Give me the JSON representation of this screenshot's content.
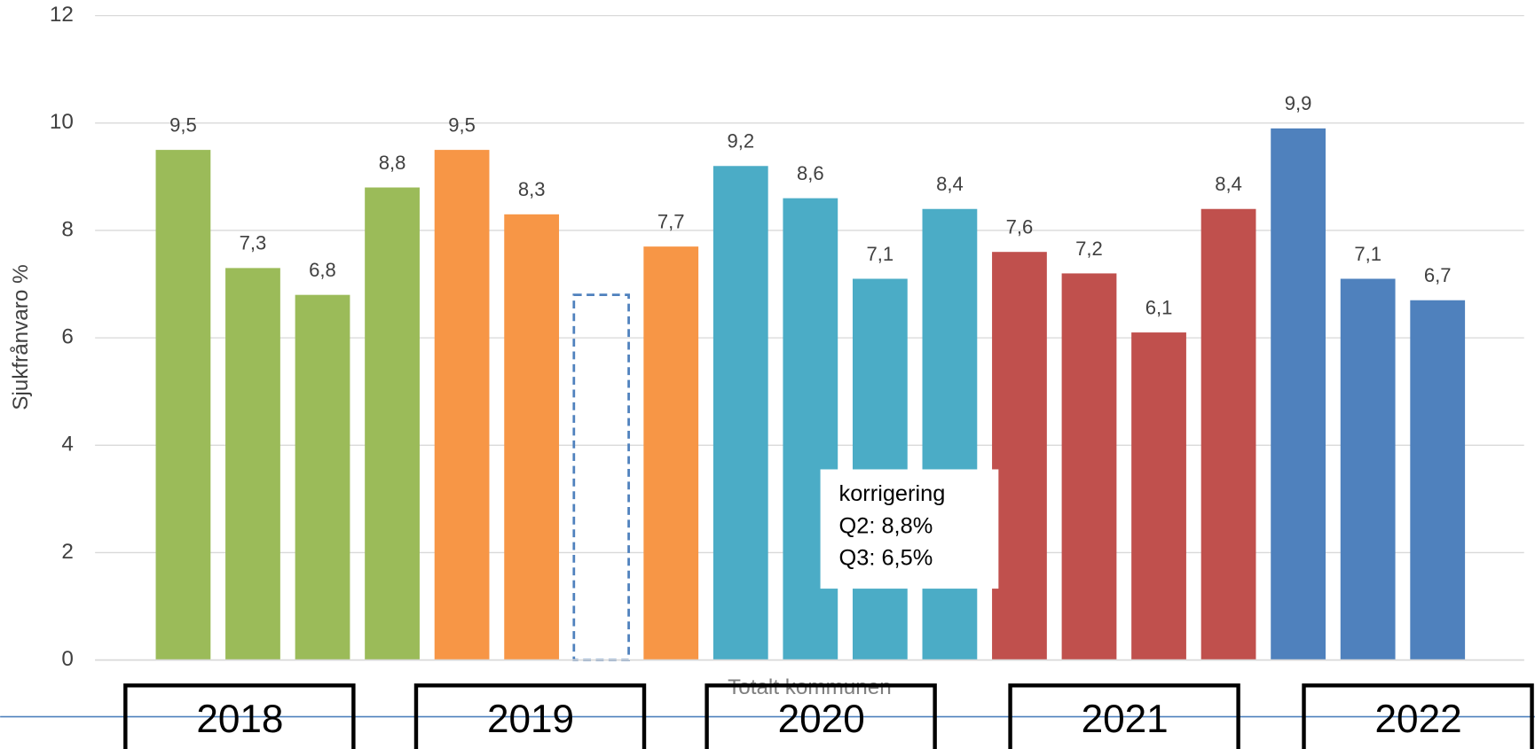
{
  "chart_data": {
    "type": "bar",
    "y_axis_label": "Sjukfrånvaro %",
    "x_axis_label": "Totalt kommunen",
    "ylim": [
      0,
      12
    ],
    "yticks": [
      0,
      2,
      4,
      6,
      8,
      10,
      12
    ],
    "grid": true,
    "series": [
      {
        "name": "2018",
        "color": "#9bbb59",
        "values": [
          9.5,
          7.3,
          6.8,
          8.8
        ],
        "value_labels": [
          "9,5",
          "7,3",
          "6,8",
          "8,8"
        ],
        "dashed": [
          false,
          false,
          false,
          false
        ]
      },
      {
        "name": "2019",
        "color": "#f79646",
        "values": [
          9.5,
          8.3,
          6.8,
          7.7
        ],
        "value_labels": [
          "9,5",
          "8,3",
          null,
          "7,7"
        ],
        "dashed": [
          false,
          false,
          true,
          false
        ]
      },
      {
        "name": "2020",
        "color": "#4bacc6",
        "values": [
          9.2,
          8.6,
          7.1,
          8.4
        ],
        "value_labels": [
          "9,2",
          "8,6",
          "7,1",
          "8,4"
        ],
        "dashed": [
          false,
          false,
          false,
          false
        ]
      },
      {
        "name": "2021",
        "color": "#c0504d",
        "values": [
          7.6,
          7.2,
          6.1,
          8.4
        ],
        "value_labels": [
          "7,6",
          "7,2",
          "6,1",
          "8,4"
        ],
        "dashed": [
          false,
          false,
          false,
          false
        ]
      },
      {
        "name": "2022",
        "color": "#4f81bd",
        "values": [
          9.9,
          7.1,
          6.7
        ],
        "value_labels": [
          "9,9",
          "7,1",
          "6,7"
        ],
        "dashed": [
          false,
          false,
          false
        ]
      }
    ],
    "annotation": [
      "korrigering",
      "Q2: 8,8%",
      "Q3: 6,5%"
    ]
  }
}
